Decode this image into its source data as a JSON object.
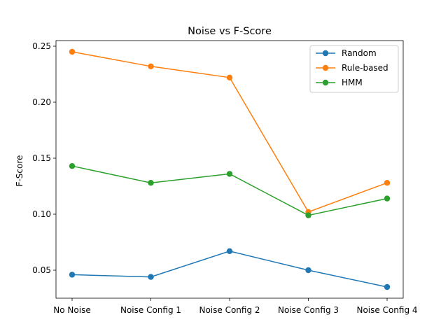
{
  "chart_data": {
    "type": "line",
    "title": "Noise vs F-Score",
    "xlabel": "",
    "ylabel": "F-Score",
    "categories": [
      "No Noise",
      "Noise Config 1",
      "Noise Config 2",
      "Noise Config 3",
      "Noise Config 4"
    ],
    "ylim": [
      0.025,
      0.255
    ],
    "yticks": [
      "0.05",
      "0.10",
      "0.15",
      "0.20",
      "0.25"
    ],
    "yticks_values": [
      0.05,
      0.1,
      0.15,
      0.2,
      0.25
    ],
    "grid": false,
    "legend_position": "top-right",
    "series": [
      {
        "name": "Random",
        "color": "#1f77b4",
        "values": [
          0.046,
          0.044,
          0.067,
          0.05,
          0.035
        ]
      },
      {
        "name": "Rule-based",
        "color": "#ff7f0e",
        "values": [
          0.245,
          0.232,
          0.222,
          0.102,
          0.128
        ]
      },
      {
        "name": "HMM",
        "color": "#2ca02c",
        "values": [
          0.143,
          0.128,
          0.136,
          0.099,
          0.114
        ]
      }
    ]
  }
}
